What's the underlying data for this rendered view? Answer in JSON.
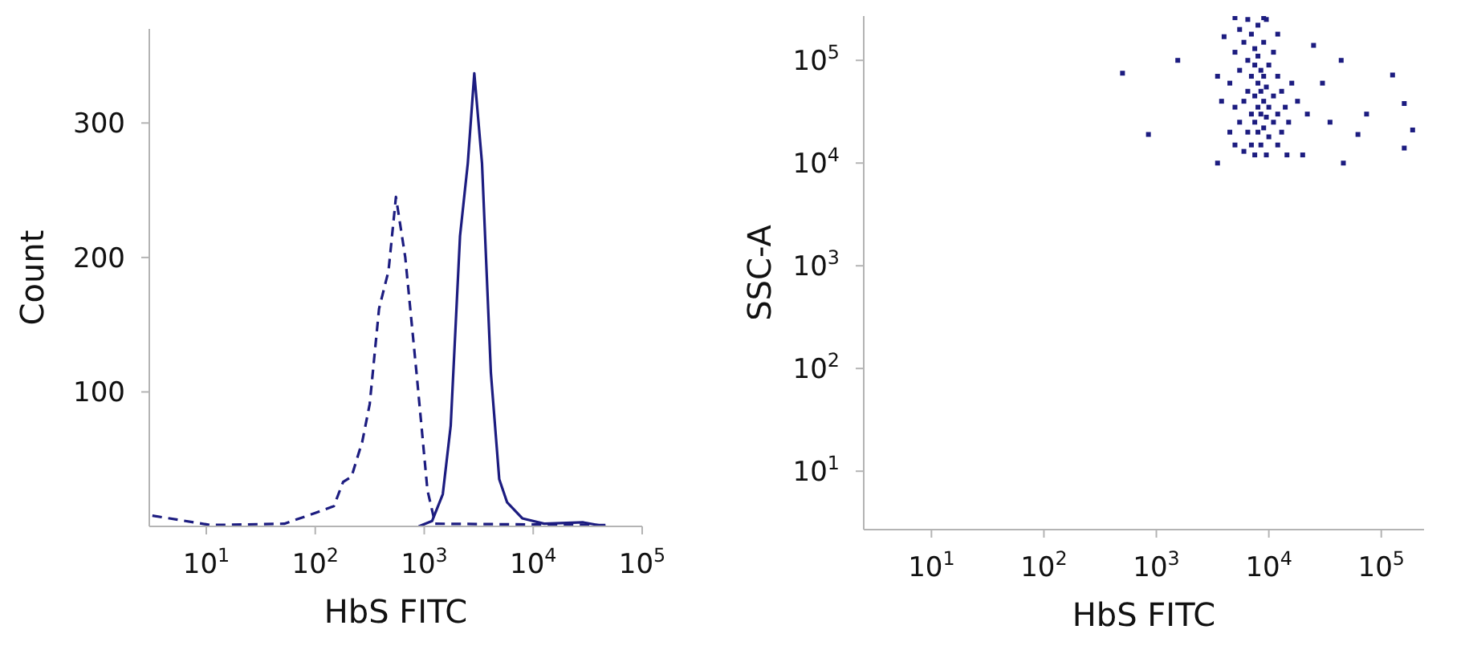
{
  "chart_data": [
    {
      "type": "line",
      "xlabel": "HbS FITC",
      "ylabel": "Count",
      "log": "x",
      "xlim": [
        3,
        100000
      ],
      "xticks": [
        {
          "value": 10,
          "label": "10$^{1}$"
        },
        {
          "value": 100,
          "label": "10$^{2}$"
        },
        {
          "value": 1000,
          "label": "10$^{3}$"
        },
        {
          "value": 10000,
          "label": "10$^{4}$"
        },
        {
          "value": 100000,
          "label": "10$^{5}$"
        }
      ],
      "ylim": [
        0,
        370
      ],
      "yticks": [
        100,
        200,
        300
      ],
      "marker": "none",
      "series": [
        {
          "color": "#1c1c80",
          "line_style": "dashed",
          "x": [
            3.2,
            11,
            52,
            100,
            148,
            180,
            215,
            270,
            316,
            385,
            470,
            550,
            670,
            850,
            1070,
            1260,
            46000
          ],
          "values": [
            8,
            1,
            2,
            10,
            15,
            33,
            37,
            63,
            91,
            162,
            190,
            245,
            200,
            114,
            27,
            2,
            1
          ]
        },
        {
          "color": "#1c1c80",
          "line_style": "solid",
          "x": [
            890,
            1180,
            1480,
            1750,
            2130,
            2510,
            2880,
            3390,
            4090,
            4880,
            5750,
            7940,
            12600,
            28800,
            46000
          ],
          "values": [
            0,
            4,
            24,
            75,
            216,
            270,
            337,
            270,
            114,
            35,
            18,
            6,
            2,
            3,
            0
          ]
        }
      ]
    },
    {
      "type": "scatter",
      "xlabel": "HbS FITC",
      "ylabel": "SSC-A",
      "log": "xy",
      "marker": "square",
      "xlim": [
        2.5,
        240000
      ],
      "xticks": [
        {
          "value": 10,
          "label": "10$^{1}$"
        },
        {
          "value": 100,
          "label": "10$^{2}$"
        },
        {
          "value": 1000,
          "label": "10$^{3}$"
        },
        {
          "value": 10000,
          "label": "10$^{4}$"
        },
        {
          "value": 100000,
          "label": "10$^{5}$"
        }
      ],
      "ylim": [
        2.7,
        270000
      ],
      "yticks": [
        {
          "value": 10,
          "label": "10$^{1}$"
        },
        {
          "value": 100,
          "label": "10$^{2}$"
        },
        {
          "value": 1000,
          "label": "10$^{3}$"
        },
        {
          "value": 10000,
          "label": "10$^{4}$"
        },
        {
          "value": 100000,
          "label": "10$^{5}$"
        }
      ],
      "series": [
        {
          "color": "#1c1c80",
          "x": [
            4500,
            4500,
            5000,
            5000,
            5000,
            5500,
            5500,
            5500,
            6000,
            6000,
            6000,
            6500,
            6500,
            6500,
            6500,
            7000,
            7000,
            7000,
            7000,
            7500,
            7500,
            7500,
            7500,
            7500,
            8000,
            8000,
            8000,
            8000,
            8000,
            8500,
            8500,
            8500,
            8500,
            9000,
            9000,
            9000,
            9000,
            9500,
            9500,
            9500,
            9500,
            10000,
            10000,
            10000,
            11000,
            11000,
            11000,
            12000,
            12000,
            12000,
            13000,
            13000,
            14000,
            15000,
            16000,
            18000,
            20000,
            22000,
            3800,
            3500,
            4000,
            5000,
            9000,
            12000,
            500,
            850,
            1550,
            3500,
            14500,
            25000,
            44000,
            74000,
            62000,
            46000,
            126000,
            160000,
            190000,
            160000,
            30000,
            35000
          ],
          "values": [
            20000,
            60000,
            15000,
            35000,
            120000,
            25000,
            80000,
            200000,
            13000,
            40000,
            150000,
            20000,
            50000,
            100000,
            250000,
            15000,
            30000,
            70000,
            180000,
            12000,
            25000,
            45000,
            90000,
            130000,
            20000,
            35000,
            60000,
            110000,
            220000,
            15000,
            30000,
            50000,
            80000,
            22000,
            40000,
            70000,
            150000,
            12000,
            28000,
            55000,
            250000,
            18000,
            35000,
            90000,
            25000,
            45000,
            120000,
            15000,
            30000,
            70000,
            20000,
            50000,
            35000,
            25000,
            60000,
            40000,
            12000,
            30000,
            40000,
            70000,
            170000,
            260000,
            260000,
            180000,
            75000,
            19000,
            100000,
            10000,
            12000,
            140000,
            100000,
            30000,
            19000,
            10000,
            72000,
            38000,
            21000,
            14000,
            60000,
            25000
          ]
        }
      ]
    }
  ]
}
